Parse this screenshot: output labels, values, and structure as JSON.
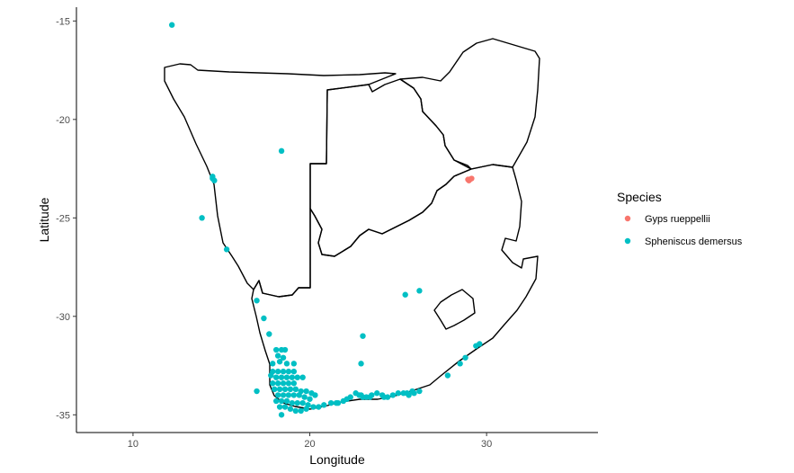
{
  "chart_data": {
    "type": "scatter",
    "xlabel": "Longitude",
    "ylabel": "Latitude",
    "xlim": [
      6.8,
      36.3
    ],
    "ylim": [
      -35.9,
      -14.3
    ],
    "xticks": [
      10,
      20,
      30
    ],
    "yticks": [
      -15,
      -20,
      -25,
      -30,
      -35
    ],
    "grid": false,
    "legend": {
      "title": "Species",
      "position": "right"
    },
    "series": [
      {
        "name": "Gyps rueppellii",
        "color": "#F8766D",
        "points": [
          [
            28.95,
            -23.05
          ],
          [
            29.05,
            -23.05
          ],
          [
            29.15,
            -23.0
          ],
          [
            29.0,
            -23.1
          ]
        ]
      },
      {
        "name": "Spheniscus demersus",
        "color": "#00BFC4",
        "points": [
          [
            12.2,
            -15.2
          ],
          [
            18.4,
            -21.6
          ],
          [
            14.5,
            -22.9
          ],
          [
            14.5,
            -23.0
          ],
          [
            14.6,
            -23.1
          ],
          [
            13.9,
            -25.0
          ],
          [
            15.3,
            -26.6
          ],
          [
            17.0,
            -29.2
          ],
          [
            17.4,
            -30.1
          ],
          [
            17.7,
            -30.9
          ],
          [
            17.0,
            -33.8
          ],
          [
            18.1,
            -31.7
          ],
          [
            18.4,
            -31.7
          ],
          [
            18.6,
            -31.7
          ],
          [
            18.2,
            -32.0
          ],
          [
            18.5,
            -32.1
          ],
          [
            17.9,
            -32.4
          ],
          [
            18.3,
            -32.3
          ],
          [
            18.7,
            -32.4
          ],
          [
            19.1,
            -32.4
          ],
          [
            17.9,
            -32.8
          ],
          [
            18.2,
            -32.8
          ],
          [
            18.5,
            -32.8
          ],
          [
            18.8,
            -32.8
          ],
          [
            19.1,
            -32.8
          ],
          [
            17.8,
            -33.0
          ],
          [
            18.1,
            -33.1
          ],
          [
            18.4,
            -33.1
          ],
          [
            18.7,
            -33.1
          ],
          [
            19.0,
            -33.1
          ],
          [
            19.3,
            -33.1
          ],
          [
            19.6,
            -33.1
          ],
          [
            17.9,
            -33.4
          ],
          [
            18.2,
            -33.4
          ],
          [
            18.5,
            -33.4
          ],
          [
            18.8,
            -33.4
          ],
          [
            19.1,
            -33.4
          ],
          [
            18.0,
            -33.7
          ],
          [
            18.3,
            -33.7
          ],
          [
            18.6,
            -33.7
          ],
          [
            18.9,
            -33.7
          ],
          [
            19.2,
            -33.7
          ],
          [
            19.5,
            -33.8
          ],
          [
            19.8,
            -33.8
          ],
          [
            20.1,
            -33.9
          ],
          [
            18.2,
            -34.0
          ],
          [
            18.5,
            -34.0
          ],
          [
            18.8,
            -34.0
          ],
          [
            19.1,
            -34.0
          ],
          [
            19.4,
            -34.0
          ],
          [
            19.7,
            -34.1
          ],
          [
            20.0,
            -34.2
          ],
          [
            20.3,
            -34.0
          ],
          [
            18.1,
            -34.3
          ],
          [
            18.4,
            -34.3
          ],
          [
            18.7,
            -34.3
          ],
          [
            19.0,
            -34.4
          ],
          [
            19.3,
            -34.4
          ],
          [
            19.6,
            -34.4
          ],
          [
            19.9,
            -34.5
          ],
          [
            18.3,
            -34.6
          ],
          [
            18.6,
            -34.6
          ],
          [
            18.9,
            -34.7
          ],
          [
            19.2,
            -34.8
          ],
          [
            19.5,
            -34.8
          ],
          [
            19.8,
            -34.7
          ],
          [
            18.4,
            -35.0
          ],
          [
            20.2,
            -34.6
          ],
          [
            20.5,
            -34.6
          ],
          [
            20.8,
            -34.5
          ],
          [
            21.2,
            -34.4
          ],
          [
            21.5,
            -34.4
          ],
          [
            21.9,
            -34.3
          ],
          [
            22.3,
            -34.1
          ],
          [
            22.6,
            -33.9
          ],
          [
            22.9,
            -34.0
          ],
          [
            23.2,
            -34.1
          ],
          [
            23.5,
            -34.0
          ],
          [
            23.8,
            -33.9
          ],
          [
            24.1,
            -34.0
          ],
          [
            24.4,
            -34.1
          ],
          [
            24.7,
            -34.0
          ],
          [
            25.0,
            -33.9
          ],
          [
            25.3,
            -33.9
          ],
          [
            25.6,
            -34.0
          ],
          [
            25.9,
            -33.9
          ],
          [
            26.2,
            -33.8
          ],
          [
            25.5,
            -33.9
          ],
          [
            25.8,
            -33.8
          ],
          [
            24.2,
            -34.1
          ],
          [
            23.0,
            -34.1
          ],
          [
            22.8,
            -34.0
          ],
          [
            23.4,
            -34.1
          ],
          [
            21.6,
            -34.4
          ],
          [
            22.1,
            -34.2
          ],
          [
            23.0,
            -31.0
          ],
          [
            22.9,
            -32.4
          ],
          [
            25.4,
            -28.9
          ],
          [
            26.2,
            -28.7
          ],
          [
            27.8,
            -33.0
          ],
          [
            28.5,
            -32.4
          ],
          [
            28.8,
            -32.1
          ],
          [
            29.4,
            -31.5
          ],
          [
            29.6,
            -31.4
          ]
        ]
      }
    ]
  }
}
